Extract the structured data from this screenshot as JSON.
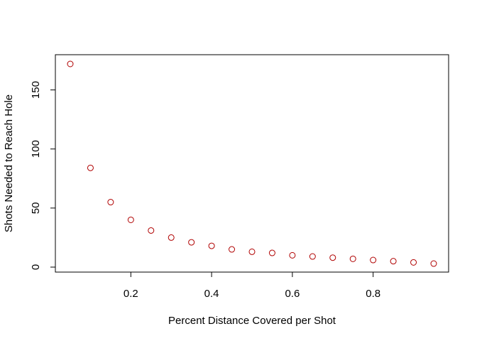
{
  "chart_data": {
    "type": "scatter",
    "title": "",
    "xlabel": "Percent Distance Covered per Shot",
    "ylabel": "Shots Needed to Reach Hole",
    "xlim": [
      0.05,
      0.95
    ],
    "ylim": [
      0,
      172
    ],
    "x_ticks": [
      0.2,
      0.4,
      0.6,
      0.8
    ],
    "x_tick_labels": [
      "0.2",
      "0.4",
      "0.6",
      "0.8"
    ],
    "y_ticks": [
      0,
      50,
      100,
      150
    ],
    "y_tick_labels": [
      "0",
      "50",
      "100",
      "150"
    ],
    "grid": false,
    "marker": "open-circle",
    "point_color": "#b00000",
    "x": [
      0.05,
      0.1,
      0.15,
      0.2,
      0.25,
      0.3,
      0.35,
      0.4,
      0.45,
      0.5,
      0.55,
      0.6,
      0.65,
      0.7,
      0.75,
      0.8,
      0.85,
      0.9,
      0.95
    ],
    "y": [
      172,
      84,
      55,
      40,
      31,
      25,
      21,
      18,
      15,
      13,
      12,
      10,
      9,
      8,
      7,
      6,
      5,
      4,
      3
    ]
  }
}
